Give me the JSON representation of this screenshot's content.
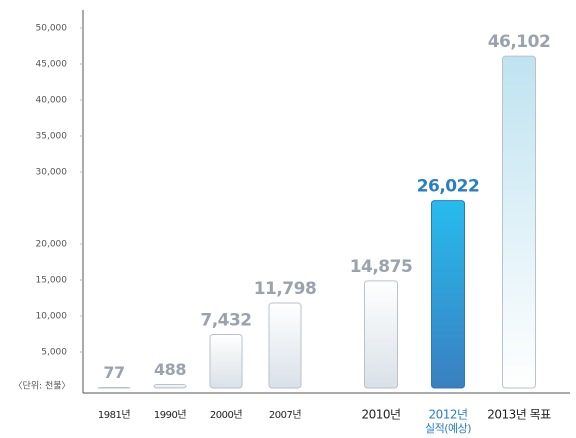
{
  "chart_data": {
    "type": "bar",
    "unit_label": "〈단위: 천불〉",
    "categories": [
      "1981년",
      "1990년",
      "2000년",
      "2007년",
      "2010년",
      "2012년",
      "2013년 목표"
    ],
    "highlight_note": "실적(예상)",
    "highlight_index": 5,
    "values": [
      77,
      488,
      7432,
      11798,
      14875,
      26022,
      46102
    ],
    "value_labels": [
      "77",
      "488",
      "7,432",
      "11,798",
      "14,875",
      "26,022",
      "46,102"
    ],
    "colors": [
      "#d9e1e8",
      "#d9e1e8",
      "#d9e1e8",
      "#d9e1e8",
      "#d9e1e8",
      "#3a7fc0",
      "#bfe3f1"
    ],
    "label_color": "#9aa3ad",
    "highlight_color": "#2a7fc4",
    "ylim": [
      0,
      50000
    ],
    "yticks": [
      {
        "value": 5000,
        "label": "5,000"
      },
      {
        "value": 10000,
        "label": "10,000"
      },
      {
        "value": 15000,
        "label": "15,000"
      },
      {
        "value": 20000,
        "label": "20,000"
      },
      {
        "value": 30000,
        "label": "30,000"
      },
      {
        "value": 35000,
        "label": "35,000"
      },
      {
        "value": 40000,
        "label": "40,000"
      },
      {
        "value": 45000,
        "label": "45,000"
      },
      {
        "value": 50000,
        "label": "50,000"
      }
    ]
  }
}
